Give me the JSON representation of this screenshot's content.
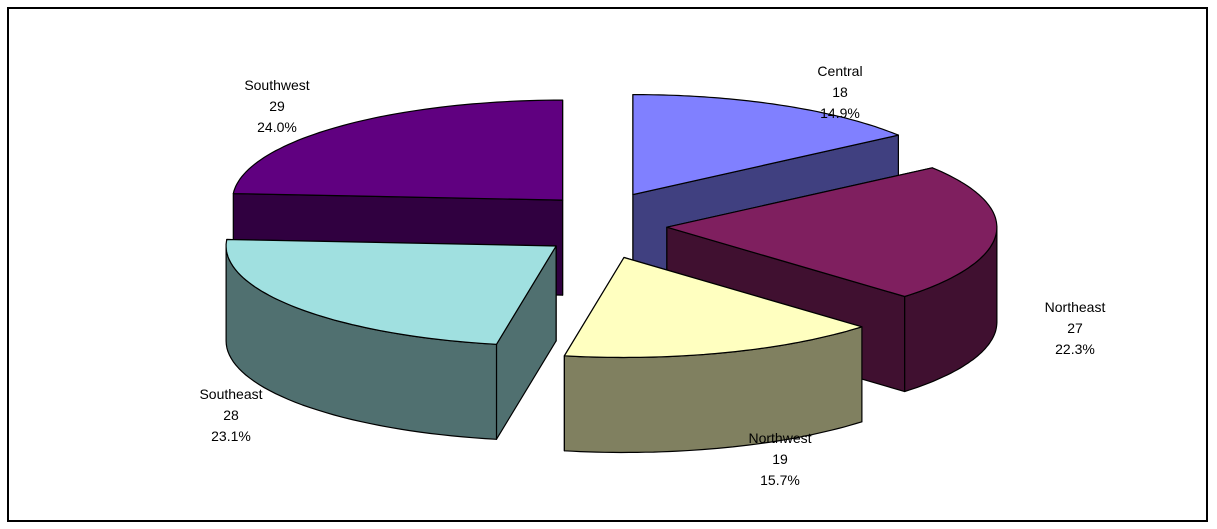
{
  "chart_data": {
    "type": "pie",
    "style": "3d-exploded",
    "slices": [
      {
        "name": "Central",
        "value": 18,
        "percent": "14.9%",
        "color": "#8080ff",
        "value_label": "18",
        "percent_label": "14.9%"
      },
      {
        "name": "Northeast",
        "value": 27,
        "percent": "22.3%",
        "color": "#7f1f5f",
        "value_label": "27",
        "percent_label": "22.3%"
      },
      {
        "name": "Northwest",
        "value": 19,
        "percent": "15.7%",
        "color": "#ffffc0",
        "value_label": "19",
        "percent_label": "15.7%"
      },
      {
        "name": "Southeast",
        "value": 28,
        "percent": "23.1%",
        "color": "#a0e0e0",
        "value_label": "28",
        "percent_label": "23.1%"
      },
      {
        "name": "Southwest",
        "value": 29,
        "percent": "24.0%",
        "color": "#600080",
        "value_label": "29",
        "percent_label": "24.0%"
      }
    ],
    "legend": "none",
    "data_labels": "category, value, percent"
  }
}
